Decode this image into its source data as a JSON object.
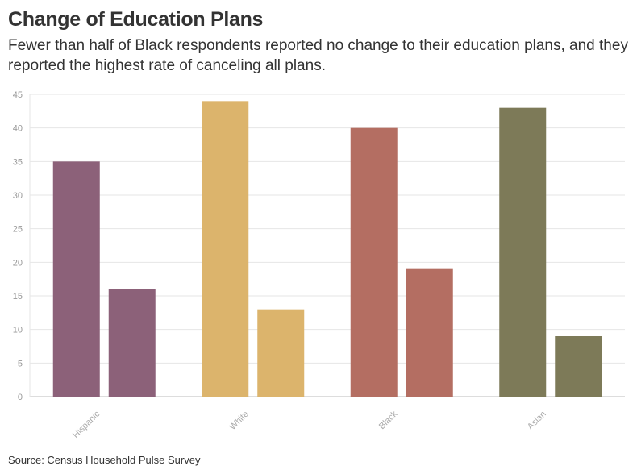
{
  "title": "Change of Education Plans",
  "subtitle": "Fewer than half of Black respondents reported no change to their education plans, and they reported the highest rate of canceling all plans.",
  "source": "Source: Census Household Pulse Survey",
  "colors": {
    "Hispanic": "#8c6179",
    "White": "#dcb46c",
    "Black": "#b46e62",
    "Asian": "#7d7a58"
  },
  "chart_data": {
    "type": "bar",
    "categories": [
      "Hispanic",
      "White",
      "Black",
      "Asian"
    ],
    "series": [
      {
        "values": [
          35,
          44,
          40,
          43
        ]
      },
      {
        "values": [
          16,
          13,
          19,
          9
        ]
      }
    ],
    "yticks": [
      0,
      5,
      10,
      15,
      20,
      25,
      30,
      35,
      40,
      45
    ],
    "ylim": [
      0,
      45
    ],
    "grid": true,
    "xlabel": "",
    "ylabel": ""
  }
}
